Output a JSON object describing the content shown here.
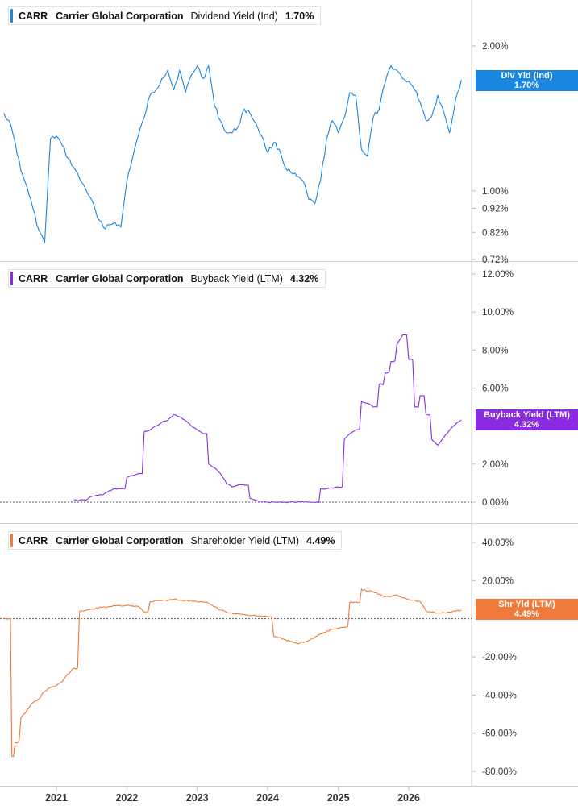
{
  "chart_data": [
    {
      "type": "line",
      "scale": "log",
      "legend": {
        "ticker": "CARR",
        "company": "Carrier Global Corporation",
        "metric": "Dividend Yield (Ind)",
        "value": "1.70%"
      },
      "tag": {
        "label": "Div Yld (Ind)",
        "value": "1.70%"
      },
      "color": "#1a86e0",
      "ylim": [
        0.72,
        2.0
      ],
      "yticks": [
        {
          "value": 2.0,
          "label": "2.00%"
        },
        {
          "value": 1.0,
          "label": "1.00%"
        },
        {
          "value": 0.92,
          "label": "0.92%"
        },
        {
          "value": 0.82,
          "label": "0.82%"
        },
        {
          "value": 0.72,
          "label": "0.72%"
        }
      ],
      "x": [
        "2020-04-03",
        "2020-05-01",
        "2020-06-01",
        "2020-07-01",
        "2020-08-01",
        "2020-09-01",
        "2020-10-01",
        "2020-11-01",
        "2020-12-01",
        "2021-01-01",
        "2021-02-01",
        "2021-03-01",
        "2021-04-01",
        "2021-05-01",
        "2021-06-01",
        "2021-07-01",
        "2021-08-01",
        "2021-09-01",
        "2021-10-01",
        "2021-11-01",
        "2021-12-01",
        "2022-01-01",
        "2022-02-01",
        "2022-03-01",
        "2022-04-01",
        "2022-05-01",
        "2022-06-01",
        "2022-07-01",
        "2022-08-01",
        "2022-09-01",
        "2022-10-01",
        "2022-11-01",
        "2022-12-01",
        "2023-01-01",
        "2023-02-01",
        "2023-03-01",
        "2023-04-01",
        "2023-05-01",
        "2023-06-01",
        "2023-07-01",
        "2023-08-01",
        "2023-09-01",
        "2023-10-01",
        "2023-11-01",
        "2023-12-01",
        "2024-01-01",
        "2024-02-01",
        "2024-03-01",
        "2024-04-01",
        "2024-05-01",
        "2024-06-01",
        "2024-07-01",
        "2024-08-01",
        "2024-09-01",
        "2024-10-01",
        "2024-11-01",
        "2024-12-01",
        "2025-01-01",
        "2025-02-01",
        "2025-03-01",
        "2025-04-01",
        "2025-05-01",
        "2025-06-01",
        "2025-07-01",
        "2025-08-01",
        "2025-09-01",
        "2025-10-01",
        "2025-11-01",
        "2025-12-01",
        "2026-01-01",
        "2026-02-01",
        "2026-03-01",
        "2026-04-01",
        "2026-05-01",
        "2026-06-01",
        "2026-07-01",
        "2026-08-01",
        "2026-09-01",
        "2026-10-01"
      ],
      "values": [
        1.45,
        1.4,
        1.26,
        1.1,
        1.02,
        0.92,
        0.83,
        0.78,
        1.28,
        1.3,
        1.24,
        1.17,
        1.12,
        1.06,
        1.01,
        0.96,
        0.88,
        0.84,
        0.85,
        0.86,
        0.84,
        1.05,
        1.18,
        1.3,
        1.42,
        1.58,
        1.62,
        1.71,
        1.78,
        1.62,
        1.78,
        1.6,
        1.74,
        1.82,
        1.71,
        1.82,
        1.5,
        1.4,
        1.32,
        1.32,
        1.36,
        1.48,
        1.45,
        1.38,
        1.3,
        1.2,
        1.26,
        1.22,
        1.12,
        1.09,
        1.07,
        1.05,
        0.96,
        0.94,
        1.05,
        1.28,
        1.4,
        1.32,
        1.42,
        1.6,
        1.58,
        1.22,
        1.18,
        1.42,
        1.48,
        1.68,
        1.82,
        1.78,
        1.71,
        1.69,
        1.62,
        1.53,
        1.4,
        1.43,
        1.58,
        1.46,
        1.32,
        1.55,
        1.7
      ]
    },
    {
      "type": "line",
      "legend": {
        "ticker": "CARR",
        "company": "Carrier Global Corporation",
        "metric": "Buyback Yield (LTM)",
        "value": "4.32%"
      },
      "tag": {
        "label": "Buyback Yield (LTM)",
        "value": "4.32%"
      },
      "color": "#8a2be2",
      "ylim": [
        0,
        12
      ],
      "reference_line": 0,
      "yticks": [
        {
          "value": 12,
          "label": "12.00%"
        },
        {
          "value": 10,
          "label": "10.00%"
        },
        {
          "value": 8,
          "label": "8.00%"
        },
        {
          "value": 6,
          "label": "6.00%"
        },
        {
          "value": 2,
          "label": "2.00%"
        },
        {
          "value": 0,
          "label": "0.00%"
        }
      ],
      "x": [
        "2021-04-01",
        "2021-06-01",
        "2021-07-01",
        "2021-09-01",
        "2021-10-01",
        "2021-11-01",
        "2021-12-01",
        "2022-01-01",
        "2022-02-01",
        "2022-03-01",
        "2022-04-01",
        "2022-05-01",
        "2022-06-01",
        "2022-07-01",
        "2022-08-01",
        "2022-09-01",
        "2022-10-01",
        "2022-11-01",
        "2022-12-01",
        "2023-01-01",
        "2023-02-01",
        "2023-03-01",
        "2023-04-01",
        "2023-05-01",
        "2023-06-01",
        "2023-07-01",
        "2023-08-01",
        "2023-10-01",
        "2023-11-01",
        "2023-12-01",
        "2024-01-01",
        "2024-02-01",
        "2024-04-01",
        "2024-06-01",
        "2024-08-01",
        "2024-10-01",
        "2024-11-01",
        "2025-01-01",
        "2025-02-01",
        "2025-03-01",
        "2025-04-01",
        "2025-05-01",
        "2025-06-01",
        "2025-07-01",
        "2025-08-01",
        "2025-09-01",
        "2025-10-01",
        "2025-11-01",
        "2025-12-01",
        "2026-01-01",
        "2026-02-01",
        "2026-03-01",
        "2026-04-01",
        "2026-05-01",
        "2026-06-01",
        "2026-07-01",
        "2026-08-01",
        "2026-09-01",
        "2026-10-01"
      ],
      "values": [
        0.1,
        0.1,
        0.3,
        0.4,
        0.6,
        0.7,
        0.7,
        1.3,
        1.4,
        1.5,
        3.7,
        3.8,
        4.0,
        4.2,
        4.3,
        4.6,
        4.5,
        4.3,
        4.0,
        3.8,
        3.6,
        2.0,
        1.8,
        1.5,
        1.0,
        0.8,
        0.9,
        0.2,
        0.1,
        0.05,
        0.0,
        0.0,
        0.0,
        0.0,
        0.0,
        0.7,
        0.7,
        0.8,
        3.3,
        3.6,
        3.8,
        5.3,
        5.2,
        5.0,
        6.2,
        6.8,
        7.4,
        8.3,
        8.8,
        7.5,
        5.0,
        5.6,
        4.6,
        3.3,
        3.0,
        3.4,
        3.8,
        4.1,
        4.32
      ]
    },
    {
      "type": "line",
      "legend": {
        "ticker": "CARR",
        "company": "Carrier Global Corporation",
        "metric": "Shareholder Yield (LTM)",
        "value": "4.49%"
      },
      "tag": {
        "label": "Shr Yld (LTM)",
        "value": "4.49%"
      },
      "color": "#f07a3c",
      "ylim": [
        -80,
        40
      ],
      "reference_line": 0,
      "yticks": [
        {
          "value": 40,
          "label": "40.00%"
        },
        {
          "value": 20,
          "label": "20.00%"
        },
        {
          "value": -20,
          "label": "-20.00%"
        },
        {
          "value": -40,
          "label": "-40.00%"
        },
        {
          "value": -60,
          "label": "-60.00%"
        },
        {
          "value": -80,
          "label": "-80.00%"
        }
      ],
      "x": [
        "2020-04-03",
        "2020-05-01",
        "2020-05-15",
        "2020-06-01",
        "2020-07-01",
        "2020-08-01",
        "2020-09-01",
        "2020-10-01",
        "2020-11-01",
        "2020-12-01",
        "2021-01-01",
        "2021-02-01",
        "2021-03-01",
        "2021-04-01",
        "2021-05-01",
        "2021-06-01",
        "2021-07-01",
        "2021-09-01",
        "2021-11-01",
        "2022-01-01",
        "2022-03-01",
        "2022-04-01",
        "2022-05-01",
        "2022-07-01",
        "2022-09-01",
        "2022-11-01",
        "2023-01-01",
        "2023-03-01",
        "2023-05-01",
        "2023-07-01",
        "2023-09-01",
        "2023-11-01",
        "2024-01-01",
        "2024-02-01",
        "2024-04-01",
        "2024-06-01",
        "2024-08-01",
        "2024-10-01",
        "2024-12-01",
        "2025-02-01",
        "2025-03-01",
        "2025-05-01",
        "2025-07-01",
        "2025-09-01",
        "2025-11-01",
        "2026-01-01",
        "2026-03-01",
        "2026-04-01",
        "2026-06-01",
        "2026-08-01",
        "2026-10-01"
      ],
      "values": [
        0.0,
        0.0,
        -72.0,
        -65.0,
        -52.0,
        -48.0,
        -44.0,
        -42.0,
        -38.0,
        -36.0,
        -35.0,
        -33.0,
        -29.0,
        -26.0,
        4.0,
        4.2,
        5.0,
        6.2,
        6.8,
        7.0,
        6.5,
        3.5,
        9.0,
        9.5,
        10.2,
        9.6,
        8.8,
        8.2,
        4.5,
        2.8,
        2.2,
        1.5,
        1.0,
        -9.0,
        -11.0,
        -13.0,
        -11.5,
        -8.0,
        -5.5,
        -4.5,
        8.5,
        15.5,
        14.0,
        11.5,
        12.5,
        10.0,
        9.0,
        4.0,
        3.0,
        3.5,
        4.49
      ]
    }
  ],
  "xaxis": {
    "ticks": [
      {
        "date": "2021-01-01",
        "label": "2021"
      },
      {
        "date": "2022-01-01",
        "label": "2022"
      },
      {
        "date": "2023-01-01",
        "label": "2023"
      },
      {
        "date": "2024-01-01",
        "label": "2024"
      },
      {
        "date": "2025-01-01",
        "label": "2025"
      },
      {
        "date": "2026-01-01",
        "label": "2026"
      }
    ],
    "range": [
      "2020-04-01",
      "2026-10-20"
    ]
  }
}
